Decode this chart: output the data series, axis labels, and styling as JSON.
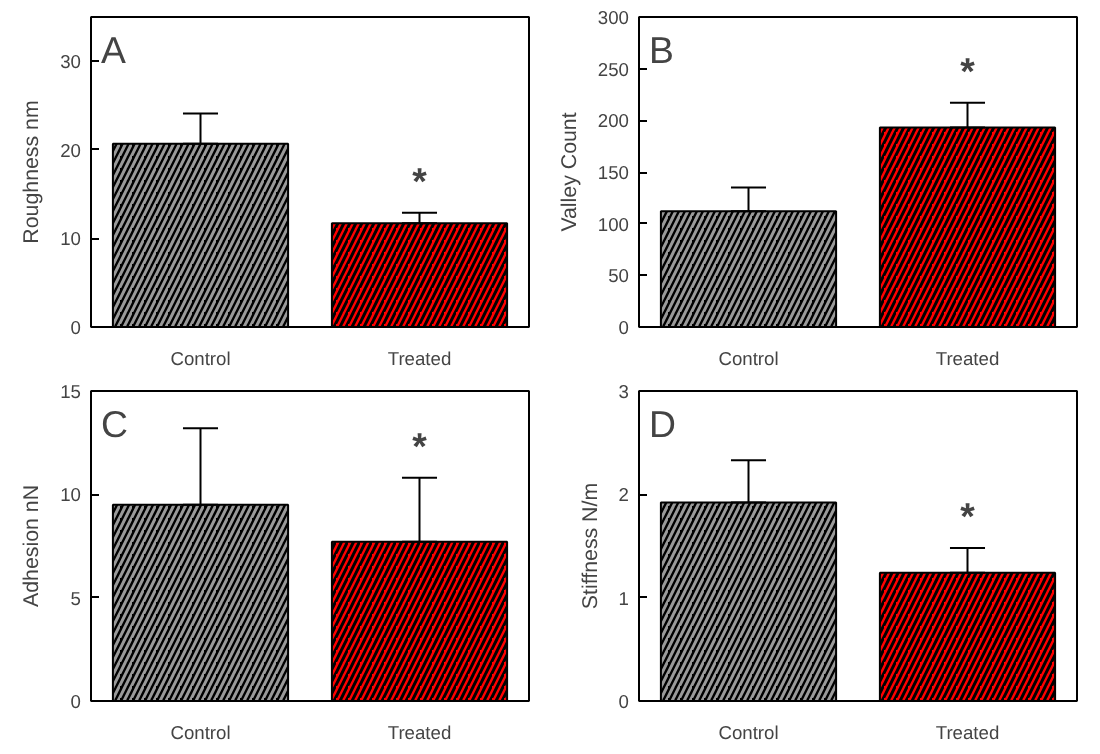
{
  "chart_data": [
    {
      "type": "bar",
      "title": "A",
      "ylabel": "Roughness nm",
      "categories": [
        "Control",
        "Treated"
      ],
      "values": [
        20.7,
        11.7
      ],
      "colors": [
        "#000000",
        "#ff0000"
      ],
      "errors": [
        [
          20.7,
          24.1
        ],
        [
          11.7,
          12.9
        ]
      ],
      "ylim": [
        0,
        35
      ],
      "yticks": [
        0,
        10,
        20,
        30
      ],
      "grid": false,
      "annotations": [
        "*"
      ]
    },
    {
      "type": "bar",
      "title": "B",
      "ylabel": "Valley Count",
      "categories": [
        "Control",
        "Treated"
      ],
      "values": [
        112,
        193
      ],
      "colors": [
        "#000000",
        "#ff0000"
      ],
      "errors": [
        [
          112,
          135
        ],
        [
          193,
          217
        ]
      ],
      "ylim": [
        0,
        300
      ],
      "yticks": [
        0,
        50,
        100,
        150,
        200,
        250,
        300
      ],
      "grid": false,
      "annotations": [
        "*"
      ]
    },
    {
      "type": "bar",
      "title": "C",
      "ylabel": "Adhesion nN",
      "categories": [
        "Control",
        "Treated"
      ],
      "values": [
        9.5,
        7.7
      ],
      "colors": [
        "#000000",
        "#ff0000"
      ],
      "errors": [
        [
          9.5,
          13.2
        ],
        [
          7.7,
          10.8
        ]
      ],
      "ylim": [
        0,
        15
      ],
      "yticks": [
        0,
        5,
        10,
        15
      ],
      "grid": false,
      "annotations": [
        "*"
      ]
    },
    {
      "type": "bar",
      "title": "D",
      "ylabel": "Stiffness N/m",
      "categories": [
        "Control",
        "Treated"
      ],
      "values": [
        1.92,
        1.24
      ],
      "colors": [
        "#000000",
        "#ff0000"
      ],
      "errors": [
        [
          1.92,
          2.33
        ],
        [
          1.24,
          1.48
        ]
      ],
      "ylim": [
        0,
        3
      ],
      "yticks": [
        0,
        1,
        2,
        3
      ],
      "grid": false,
      "annotations": [
        "*"
      ]
    }
  ]
}
